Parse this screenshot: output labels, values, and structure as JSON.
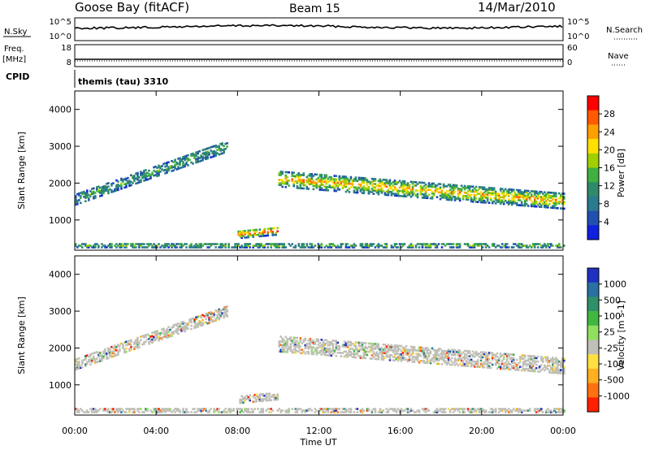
{
  "header": {
    "station": "Goose Bay (fitACF)",
    "beam": "Beam 15",
    "date": "14/Mar/2010"
  },
  "status_panels": {
    "nsky_label": "N.Sky",
    "nsky_ticks": [
      "10^5",
      "10^0"
    ],
    "nsearch_label": "N.Search",
    "nsearch_ticks": [
      "10^5",
      "10^0"
    ],
    "freq_label_1": "Freq.",
    "freq_label_2": "[MHz]",
    "freq_ticks": [
      "18",
      "8"
    ],
    "nave_label": "Nave",
    "nave_ticks": [
      "60",
      "0"
    ],
    "cpid_label": "CPID",
    "cpid_value": "themis (tau) 3310"
  },
  "chart_data": [
    {
      "type": "heatmap",
      "name": "power",
      "xlabel": "Time UT",
      "ylabel": "Slant Range [km]",
      "xlim": [
        0,
        24
      ],
      "ylim": [
        180,
        4500
      ],
      "x_ticks": [
        "00:00",
        "04:00",
        "08:00",
        "12:00",
        "16:00",
        "20:00",
        "00:00"
      ],
      "y_ticks": [
        1000,
        2000,
        3000,
        4000
      ],
      "colorbar": {
        "label": "Power [dB]",
        "ticks": [
          "28",
          "24",
          "20",
          "16",
          "12",
          "8",
          "4"
        ],
        "colors": [
          "#ff0000",
          "#ff5a00",
          "#ffa000",
          "#ffe000",
          "#a0d000",
          "#40b040",
          "#2f8a6a",
          "#2a7a90",
          "#2050b0",
          "#1020e0"
        ]
      },
      "bands": [
        {
          "t_start": 0.0,
          "t_end": 7.5,
          "r_start": 1550,
          "r_end": 3000,
          "width": 300,
          "level": 0.2
        },
        {
          "t_start": 10.0,
          "t_end": 24.0,
          "r_start": 2100,
          "r_end": 1500,
          "width": 420,
          "level": 0.6
        },
        {
          "t_start": 8.0,
          "t_end": 10.0,
          "r_start": 600,
          "r_end": 700,
          "width": 220,
          "level": 0.75
        },
        {
          "t_start": 0.0,
          "t_end": 24.0,
          "r_start": 300,
          "r_end": 300,
          "width": 120,
          "level": 0.3
        }
      ]
    },
    {
      "type": "heatmap",
      "name": "velocity",
      "xlabel": "Time UT",
      "ylabel": "Slant Range [km]",
      "xlim": [
        0,
        24
      ],
      "ylim": [
        180,
        4500
      ],
      "x_ticks": [
        "00:00",
        "04:00",
        "08:00",
        "12:00",
        "16:00",
        "20:00",
        "00:00"
      ],
      "y_ticks": [
        1000,
        2000,
        3000,
        4000
      ],
      "colorbar": {
        "label": "Velocity [m s-1]",
        "ticks": [
          "1000",
          "500",
          "100",
          "25",
          "-25",
          "-100",
          "-500",
          "-1000"
        ],
        "colors": [
          "#2030c0",
          "#2a70a0",
          "#30906a",
          "#40b840",
          "#90e060",
          "#c0c0b8",
          "#ffe040",
          "#ffb020",
          "#ff7010",
          "#ff2000"
        ]
      },
      "bands": [
        {
          "t_start": 0.0,
          "t_end": 7.5,
          "r_start": 1550,
          "r_end": 3000,
          "width": 300,
          "level": 0.5
        },
        {
          "t_start": 10.0,
          "t_end": 24.0,
          "r_start": 2100,
          "r_end": 1500,
          "width": 420,
          "level": 0.5
        },
        {
          "t_start": 8.0,
          "t_end": 10.0,
          "r_start": 600,
          "r_end": 700,
          "width": 220,
          "level": 0.5
        },
        {
          "t_start": 0.0,
          "t_end": 24.0,
          "r_start": 300,
          "r_end": 300,
          "width": 120,
          "level": 0.5
        }
      ]
    }
  ]
}
